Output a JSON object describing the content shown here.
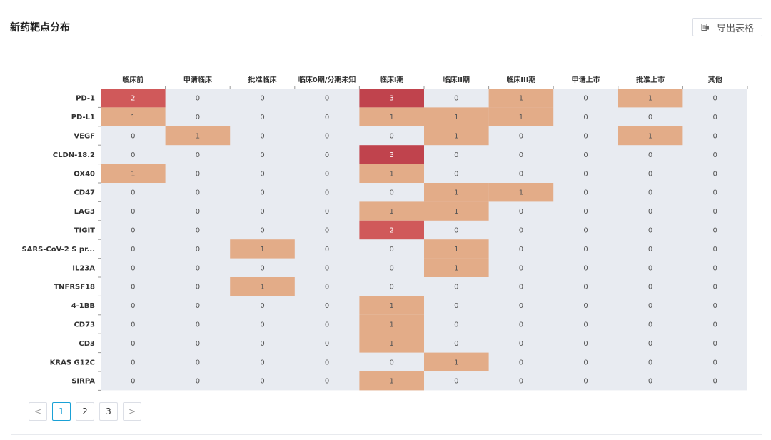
{
  "header": {
    "title": "新药靶点分布",
    "export_label": "导出表格"
  },
  "colors": {
    "empty": "#e8ebf1",
    "low": "#e3ac88",
    "mid": "#d0595a",
    "high": "#c0434d",
    "text_light": "#ffffff",
    "text_dark": "#555555",
    "accent": "#1aa1d6"
  },
  "icons": {
    "export": "export-table-icon"
  },
  "pagination": {
    "prev": "<",
    "next": ">",
    "pages": [
      "1",
      "2",
      "3"
    ],
    "current": "1"
  },
  "chart_data": {
    "type": "heatmap",
    "x_categories": [
      "临床前",
      "申请临床",
      "批准临床",
      "临床0期/分期未知",
      "临床I期",
      "临床II期",
      "临床III期",
      "申请上市",
      "批准上市",
      "其他"
    ],
    "y_categories": [
      "PD-1",
      "PD-L1",
      "VEGF",
      "CLDN-18.2",
      "OX40",
      "CD47",
      "LAG3",
      "TIGIT",
      "SARS-CoV-2 S pr...",
      "IL23A",
      "TNFRSF18",
      "4-1BB",
      "CD73",
      "CD3",
      "KRAS G12C",
      "SIRPA"
    ],
    "values": [
      [
        2,
        0,
        0,
        0,
        3,
        0,
        1,
        0,
        1,
        0
      ],
      [
        1,
        0,
        0,
        0,
        1,
        1,
        1,
        0,
        0,
        0
      ],
      [
        0,
        1,
        0,
        0,
        0,
        1,
        0,
        0,
        1,
        0
      ],
      [
        0,
        0,
        0,
        0,
        3,
        0,
        0,
        0,
        0,
        0
      ],
      [
        1,
        0,
        0,
        0,
        1,
        0,
        0,
        0,
        0,
        0
      ],
      [
        0,
        0,
        0,
        0,
        0,
        1,
        1,
        0,
        0,
        0
      ],
      [
        0,
        0,
        0,
        0,
        1,
        1,
        0,
        0,
        0,
        0
      ],
      [
        0,
        0,
        0,
        0,
        2,
        0,
        0,
        0,
        0,
        0
      ],
      [
        0,
        0,
        1,
        0,
        0,
        1,
        0,
        0,
        0,
        0
      ],
      [
        0,
        0,
        0,
        0,
        0,
        1,
        0,
        0,
        0,
        0
      ],
      [
        0,
        0,
        1,
        0,
        0,
        0,
        0,
        0,
        0,
        0
      ],
      [
        0,
        0,
        0,
        0,
        1,
        0,
        0,
        0,
        0,
        0
      ],
      [
        0,
        0,
        0,
        0,
        1,
        0,
        0,
        0,
        0,
        0
      ],
      [
        0,
        0,
        0,
        0,
        1,
        0,
        0,
        0,
        0,
        0
      ],
      [
        0,
        0,
        0,
        0,
        0,
        1,
        0,
        0,
        0,
        0
      ],
      [
        0,
        0,
        0,
        0,
        1,
        0,
        0,
        0,
        0,
        0
      ]
    ],
    "x_axis_position": "top",
    "legend": "none"
  }
}
